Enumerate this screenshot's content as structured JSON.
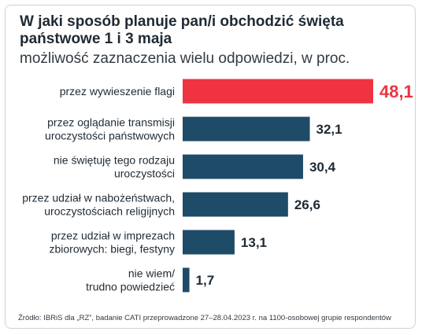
{
  "title": "W jaki sposób planuje pan/i obchodzić święta państwowe 1 i 3 maja",
  "subtitle": "możliwość zaznaczenia wielu odpowiedzi, w proc.",
  "source": "Źródło: IBRiS dla „RZ”, badanie CATI przeprowadzone 27–28.04.2023 r. na 1100-osobowej grupie respondentów",
  "colors": {
    "highlight": "#ef3340",
    "bar": "#1e4b68",
    "value_highlight": "#ef3340",
    "value": "#1f2a33"
  },
  "chart_data": {
    "type": "bar",
    "orientation": "horizontal",
    "categories": [
      [
        "przez wywieszenie flagi"
      ],
      [
        "przez oglądanie transmisji",
        "uroczystości państwowych"
      ],
      [
        "nie świętuję tego rodzaju",
        "uroczystości"
      ],
      [
        "przez udział w nabożeństwach,",
        "uroczystościach religijnych"
      ],
      [
        "przez udział w imprezach",
        "zbiorowych: biegi, festyny"
      ],
      [
        "nie wiem/",
        "trudno powiedzieć"
      ]
    ],
    "values": [
      48.1,
      32.1,
      30.4,
      26.6,
      13.1,
      1.7
    ],
    "value_labels": [
      "48,1",
      "32,1",
      "30,4",
      "26,6",
      "13,1",
      "1,7"
    ],
    "highlight_index": 0,
    "grid": false,
    "xlim": [
      0,
      50
    ]
  }
}
